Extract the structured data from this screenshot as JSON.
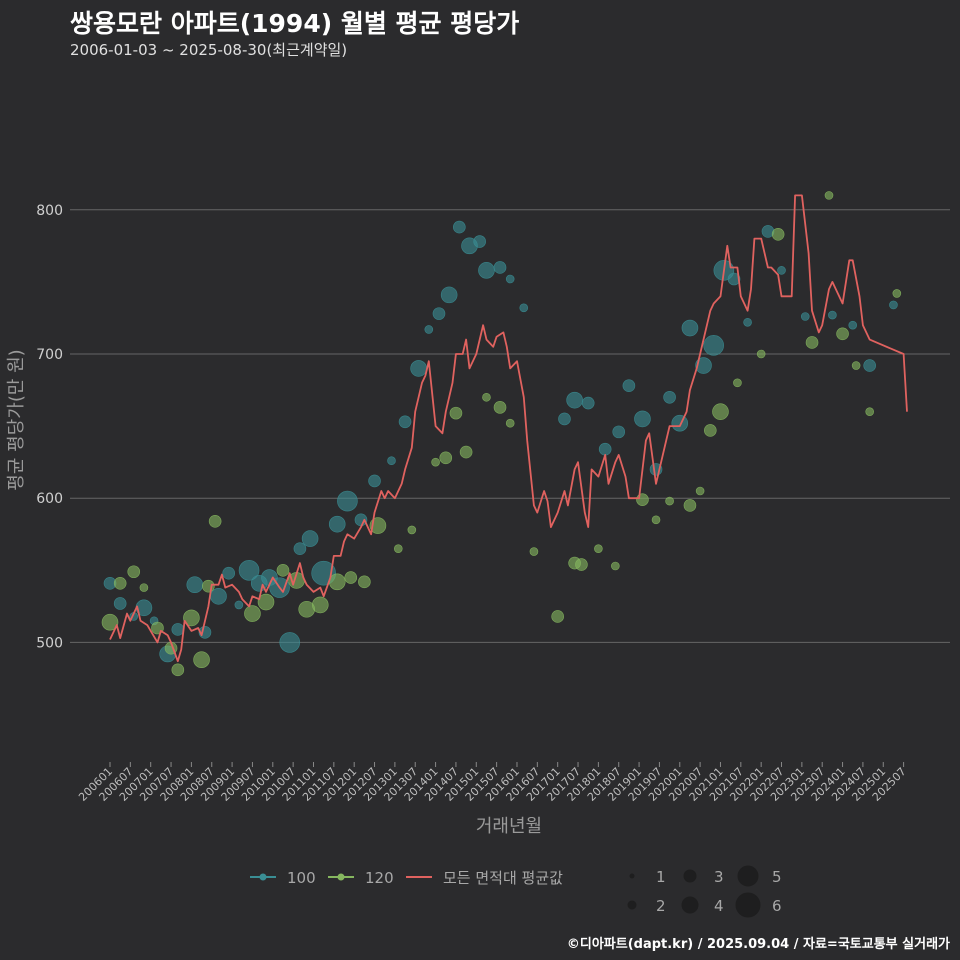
{
  "header": {
    "title": "쌍용모란 아파트(1994) 월별 평균 평당가",
    "subtitle": "2006-01-03 ~ 2025-08-30(최근계약일)"
  },
  "footer": {
    "credit": "©디아파트(dapt.kr) / 2025.09.04 / 자료=국토교통부 실거래가"
  },
  "colors": {
    "background": "#2b2b2d",
    "grid": "#666666",
    "s100": "#3a8e94",
    "s120": "#86b75f",
    "avg": "#e0625f"
  },
  "chart_data": {
    "type": "line+scatter",
    "title": "쌍용모란 아파트(1994) 월별 평균 평당가",
    "xlabel": "거래년월",
    "ylabel": "평균 평당가(만 원)",
    "ylim": [
      415,
      890
    ],
    "yticks": [
      500,
      600,
      700,
      800
    ],
    "grid": "horizontal",
    "legend_position": "bottom",
    "xrange": [
      "2006-01",
      "2025-08"
    ],
    "xticks": [
      "200601",
      "200607",
      "200701",
      "200707",
      "200801",
      "200807",
      "200901",
      "200907",
      "201001",
      "201007",
      "201101",
      "201107",
      "201201",
      "201207",
      "201301",
      "201307",
      "201401",
      "201407",
      "201501",
      "201507",
      "201601",
      "201607",
      "201701",
      "201707",
      "201801",
      "201807",
      "201901",
      "201907",
      "202001",
      "202007",
      "202101",
      "202107",
      "202201",
      "202207",
      "202301",
      "202307",
      "202401",
      "202407",
      "202501",
      "202507"
    ],
    "legend": {
      "series": [
        "100",
        "120",
        "모든 면적대 평균값"
      ],
      "sizes": [
        "1",
        "2",
        "3",
        "4",
        "5",
        "6"
      ]
    },
    "avg_line": {
      "name": "모든 면적대 평균값",
      "points": [
        [
          "2006-01",
          502
        ],
        [
          "2006-03",
          512
        ],
        [
          "2006-04",
          503
        ],
        [
          "2006-06",
          520
        ],
        [
          "2006-07",
          515
        ],
        [
          "2006-09",
          525
        ],
        [
          "2006-10",
          515
        ],
        [
          "2006-12",
          512
        ],
        [
          "2007-01",
          508
        ],
        [
          "2007-03",
          500
        ],
        [
          "2007-04",
          508
        ],
        [
          "2007-06",
          505
        ],
        [
          "2007-07",
          500
        ],
        [
          "2007-09",
          487
        ],
        [
          "2007-10",
          495
        ],
        [
          "2007-11",
          515
        ],
        [
          "2008-01",
          508
        ],
        [
          "2008-03",
          510
        ],
        [
          "2008-04",
          505
        ],
        [
          "2008-06",
          525
        ],
        [
          "2008-07",
          540
        ],
        [
          "2008-09",
          540
        ],
        [
          "2008-10",
          547
        ],
        [
          "2008-11",
          538
        ],
        [
          "2009-01",
          540
        ],
        [
          "2009-03",
          535
        ],
        [
          "2009-04",
          530
        ],
        [
          "2009-06",
          525
        ],
        [
          "2009-07",
          532
        ],
        [
          "2009-09",
          530
        ],
        [
          "2009-10",
          540
        ],
        [
          "2009-11",
          535
        ],
        [
          "2010-01",
          545
        ],
        [
          "2010-03",
          538
        ],
        [
          "2010-04",
          535
        ],
        [
          "2010-06",
          548
        ],
        [
          "2010-07",
          540
        ],
        [
          "2010-09",
          555
        ],
        [
          "2010-10",
          545
        ],
        [
          "2010-11",
          540
        ],
        [
          "2011-01",
          535
        ],
        [
          "2011-03",
          538
        ],
        [
          "2011-04",
          532
        ],
        [
          "2011-06",
          545
        ],
        [
          "2011-07",
          560
        ],
        [
          "2011-09",
          560
        ],
        [
          "2011-10",
          570
        ],
        [
          "2011-11",
          575
        ],
        [
          "2012-01",
          572
        ],
        [
          "2012-03",
          580
        ],
        [
          "2012-04",
          585
        ],
        [
          "2012-06",
          575
        ],
        [
          "2012-07",
          590
        ],
        [
          "2012-09",
          605
        ],
        [
          "2012-10",
          600
        ],
        [
          "2012-11",
          605
        ],
        [
          "2013-01",
          600
        ],
        [
          "2013-03",
          610
        ],
        [
          "2013-04",
          620
        ],
        [
          "2013-06",
          635
        ],
        [
          "2013-07",
          660
        ],
        [
          "2013-09",
          680
        ],
        [
          "2013-10",
          685
        ],
        [
          "2013-11",
          695
        ],
        [
          "2014-01",
          650
        ],
        [
          "2014-03",
          645
        ],
        [
          "2014-04",
          660
        ],
        [
          "2014-06",
          680
        ],
        [
          "2014-07",
          700
        ],
        [
          "2014-09",
          700
        ],
        [
          "2014-10",
          710
        ],
        [
          "2014-11",
          690
        ],
        [
          "2015-01",
          700
        ],
        [
          "2015-03",
          720
        ],
        [
          "2015-04",
          710
        ],
        [
          "2015-06",
          705
        ],
        [
          "2015-07",
          712
        ],
        [
          "2015-09",
          715
        ],
        [
          "2015-10",
          705
        ],
        [
          "2015-11",
          690
        ],
        [
          "2016-01",
          695
        ],
        [
          "2016-03",
          670
        ],
        [
          "2016-04",
          640
        ],
        [
          "2016-06",
          595
        ],
        [
          "2016-07",
          590
        ],
        [
          "2016-09",
          605
        ],
        [
          "2016-10",
          598
        ],
        [
          "2016-11",
          580
        ],
        [
          "2017-01",
          590
        ],
        [
          "2017-03",
          605
        ],
        [
          "2017-04",
          595
        ],
        [
          "2017-06",
          620
        ],
        [
          "2017-07",
          625
        ],
        [
          "2017-09",
          590
        ],
        [
          "2017-10",
          580
        ],
        [
          "2017-11",
          620
        ],
        [
          "2018-01",
          615
        ],
        [
          "2018-03",
          630
        ],
        [
          "2018-04",
          610
        ],
        [
          "2018-06",
          625
        ],
        [
          "2018-07",
          630
        ],
        [
          "2018-09",
          615
        ],
        [
          "2018-10",
          600
        ],
        [
          "2018-11",
          600
        ],
        [
          "2019-01",
          600
        ],
        [
          "2019-03",
          640
        ],
        [
          "2019-04",
          645
        ],
        [
          "2019-06",
          610
        ],
        [
          "2019-07",
          620
        ],
        [
          "2019-09",
          640
        ],
        [
          "2019-10",
          650
        ],
        [
          "2019-11",
          650
        ],
        [
          "2020-01",
          650
        ],
        [
          "2020-03",
          660
        ],
        [
          "2020-04",
          675
        ],
        [
          "2020-06",
          690
        ],
        [
          "2020-07",
          700
        ],
        [
          "2020-09",
          720
        ],
        [
          "2020-10",
          730
        ],
        [
          "2020-11",
          735
        ],
        [
          "2021-01",
          740
        ],
        [
          "2021-03",
          775
        ],
        [
          "2021-04",
          760
        ],
        [
          "2021-06",
          760
        ],
        [
          "2021-07",
          740
        ],
        [
          "2021-09",
          730
        ],
        [
          "2021-10",
          745
        ],
        [
          "2021-11",
          780
        ],
        [
          "2022-01",
          780
        ],
        [
          "2022-03",
          760
        ],
        [
          "2022-04",
          760
        ],
        [
          "2022-06",
          755
        ],
        [
          "2022-07",
          740
        ],
        [
          "2022-09",
          740
        ],
        [
          "2022-10",
          740
        ],
        [
          "2022-11",
          810
        ],
        [
          "2023-01",
          810
        ],
        [
          "2023-03",
          770
        ],
        [
          "2023-04",
          730
        ],
        [
          "2023-06",
          715
        ],
        [
          "2023-07",
          720
        ],
        [
          "2023-09",
          745
        ],
        [
          "2023-10",
          750
        ],
        [
          "2023-11",
          745
        ],
        [
          "2024-01",
          735
        ],
        [
          "2024-03",
          765
        ],
        [
          "2024-04",
          765
        ],
        [
          "2024-06",
          740
        ],
        [
          "2024-07",
          720
        ],
        [
          "2024-09",
          710
        ],
        [
          "2025-07",
          700
        ],
        [
          "2025-08",
          660
        ]
      ]
    },
    "series": [
      {
        "name": "100",
        "color": "#3a8e94",
        "points": [
          [
            "2006-01",
            541,
            3
          ],
          [
            "2006-04",
            527,
            3
          ],
          [
            "2006-08",
            518,
            2
          ],
          [
            "2006-11",
            524,
            4
          ],
          [
            "2007-02",
            515,
            2
          ],
          [
            "2007-06",
            492,
            4
          ],
          [
            "2007-09",
            509,
            3
          ],
          [
            "2008-02",
            540,
            4
          ],
          [
            "2008-05",
            507,
            3
          ],
          [
            "2008-09",
            532,
            4
          ],
          [
            "2008-12",
            548,
            3
          ],
          [
            "2009-03",
            526,
            2
          ],
          [
            "2009-06",
            550,
            5
          ],
          [
            "2009-09",
            541,
            4
          ],
          [
            "2009-12",
            545,
            4
          ],
          [
            "2010-03",
            538,
            5
          ],
          [
            "2010-06",
            500,
            5
          ],
          [
            "2010-09",
            565,
            3
          ],
          [
            "2010-12",
            572,
            4
          ],
          [
            "2011-04",
            548,
            6
          ],
          [
            "2011-08",
            582,
            4
          ],
          [
            "2011-11",
            598,
            5
          ],
          [
            "2012-03",
            585,
            3
          ],
          [
            "2012-07",
            612,
            3
          ],
          [
            "2012-12",
            626,
            2
          ],
          [
            "2013-04",
            653,
            3
          ],
          [
            "2013-08",
            690,
            4
          ],
          [
            "2013-11",
            717,
            2
          ],
          [
            "2014-02",
            728,
            3
          ],
          [
            "2014-05",
            741,
            4
          ],
          [
            "2014-08",
            788,
            3
          ],
          [
            "2014-11",
            775,
            4
          ],
          [
            "2015-02",
            778,
            3
          ],
          [
            "2015-04",
            758,
            4
          ],
          [
            "2015-08",
            760,
            3
          ],
          [
            "2015-11",
            752,
            2
          ],
          [
            "2016-03",
            732,
            2
          ],
          [
            "2017-03",
            655,
            3
          ],
          [
            "2017-06",
            668,
            4
          ],
          [
            "2017-10",
            666,
            3
          ],
          [
            "2018-03",
            634,
            3
          ],
          [
            "2018-07",
            646,
            3
          ],
          [
            "2018-10",
            678,
            3
          ],
          [
            "2019-02",
            655,
            4
          ],
          [
            "2019-06",
            620,
            3
          ],
          [
            "2019-10",
            670,
            3
          ],
          [
            "2020-01",
            652,
            4
          ],
          [
            "2020-04",
            718,
            4
          ],
          [
            "2020-08",
            692,
            4
          ],
          [
            "2020-11",
            706,
            5
          ],
          [
            "2021-02",
            758,
            5
          ],
          [
            "2021-05",
            752,
            3
          ],
          [
            "2021-09",
            722,
            2
          ],
          [
            "2022-03",
            785,
            3
          ],
          [
            "2022-07",
            758,
            2
          ],
          [
            "2023-02",
            726,
            2
          ],
          [
            "2023-10",
            727,
            2
          ],
          [
            "2024-04",
            720,
            2
          ],
          [
            "2024-09",
            692,
            3
          ],
          [
            "2025-04",
            734,
            2
          ]
        ]
      },
      {
        "name": "120",
        "color": "#86b75f",
        "points": [
          [
            "2006-01",
            514,
            4
          ],
          [
            "2006-04",
            541,
            3
          ],
          [
            "2006-08",
            549,
            3
          ],
          [
            "2006-11",
            538,
            2
          ],
          [
            "2007-03",
            510,
            3
          ],
          [
            "2007-07",
            496,
            3
          ],
          [
            "2007-09",
            481,
            3
          ],
          [
            "2008-01",
            517,
            4
          ],
          [
            "2008-04",
            488,
            4
          ],
          [
            "2008-06",
            539,
            3
          ],
          [
            "2008-08",
            584,
            3
          ],
          [
            "2009-07",
            520,
            4
          ],
          [
            "2009-11",
            528,
            4
          ],
          [
            "2010-04",
            550,
            3
          ],
          [
            "2010-08",
            543,
            4
          ],
          [
            "2010-11",
            523,
            4
          ],
          [
            "2011-03",
            526,
            4
          ],
          [
            "2011-08",
            542,
            4
          ],
          [
            "2011-12",
            545,
            3
          ],
          [
            "2012-04",
            542,
            3
          ],
          [
            "2012-08",
            581,
            4
          ],
          [
            "2013-02",
            565,
            2
          ],
          [
            "2013-06",
            578,
            2
          ],
          [
            "2014-01",
            625,
            2
          ],
          [
            "2014-04",
            628,
            3
          ],
          [
            "2014-07",
            659,
            3
          ],
          [
            "2014-10",
            632,
            3
          ],
          [
            "2015-04",
            670,
            2
          ],
          [
            "2015-08",
            663,
            3
          ],
          [
            "2015-11",
            652,
            2
          ],
          [
            "2016-06",
            563,
            2
          ],
          [
            "2017-01",
            518,
            3
          ],
          [
            "2017-06",
            555,
            3
          ],
          [
            "2017-08",
            554,
            3
          ],
          [
            "2018-01",
            565,
            2
          ],
          [
            "2018-06",
            553,
            2
          ],
          [
            "2019-02",
            599,
            3
          ],
          [
            "2019-06",
            585,
            2
          ],
          [
            "2019-10",
            598,
            2
          ],
          [
            "2020-04",
            595,
            3
          ],
          [
            "2020-07",
            605,
            2
          ],
          [
            "2020-10",
            647,
            3
          ],
          [
            "2021-01",
            660,
            4
          ],
          [
            "2021-06",
            680,
            2
          ],
          [
            "2022-01",
            700,
            2
          ],
          [
            "2022-06",
            783,
            3
          ],
          [
            "2023-04",
            708,
            3
          ],
          [
            "2023-09",
            810,
            2
          ],
          [
            "2024-01",
            714,
            3
          ],
          [
            "2024-05",
            692,
            2
          ],
          [
            "2024-09",
            660,
            2
          ],
          [
            "2025-05",
            742,
            2
          ]
        ]
      }
    ]
  }
}
